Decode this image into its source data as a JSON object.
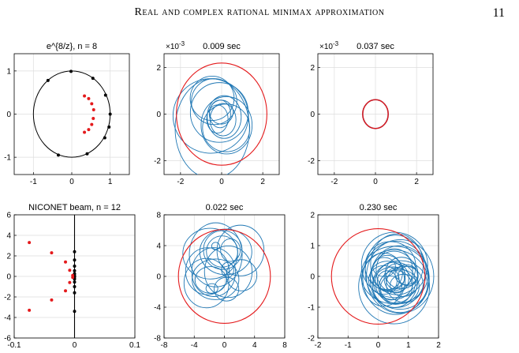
{
  "header": {
    "running_title": "Real and complex rational minimax approximation",
    "page_number": "11"
  },
  "colors": {
    "black": "#000000",
    "red": "#e41a1c",
    "blue": "#1f77b4",
    "darkred": "#8b1a3a",
    "grid": "#dddddd"
  },
  "chart_data": [
    {
      "type": "scatter",
      "title": "e^{8/z},  n = 8",
      "xlim": [
        -1.5,
        1.5
      ],
      "ylim": [
        -1.4,
        1.4
      ],
      "xticks": [
        -1,
        0,
        1
      ],
      "yticks": [
        -1,
        0,
        1
      ],
      "xtick_labels": [
        "-1",
        "0",
        "1"
      ],
      "ytick_labels": [
        "-1",
        "0",
        "1"
      ],
      "unit_circle": true,
      "series": [
        {
          "name": "",
          "color": "black",
          "x": [
            -0.62,
            -0.02,
            0.55,
            0.88,
            1.0,
            0.97,
            0.86,
            0.4,
            -0.35
          ],
          "y": [
            0.78,
            0.99,
            0.83,
            0.44,
            0.0,
            -0.3,
            -0.55,
            -0.92,
            -0.95
          ]
        },
        {
          "name": "",
          "color": "red",
          "x": [
            0.33,
            0.44,
            0.52,
            0.57,
            0.56,
            0.52,
            0.44,
            0.33
          ],
          "y": [
            0.42,
            0.36,
            0.24,
            0.1,
            -0.1,
            -0.24,
            -0.36,
            -0.42
          ]
        }
      ]
    },
    {
      "type": "line",
      "title": "0.009 sec",
      "exponent_label": "×10",
      "exponent": "-3",
      "xlim": [
        -2.8,
        2.8
      ],
      "ylim": [
        -2.6,
        2.6
      ],
      "xticks": [
        -2,
        0,
        2
      ],
      "yticks": [
        -2,
        0,
        2
      ],
      "xtick_labels": [
        "-2",
        "0",
        "2"
      ],
      "ytick_labels": [
        "-2",
        "0",
        "2"
      ],
      "circle_radius": 2.2,
      "loops": [
        [
          0,
          0,
          1.9
        ],
        [
          -0.3,
          0.2,
          1.5
        ],
        [
          0.3,
          -0.2,
          1.4
        ],
        [
          -0.5,
          -0.3,
          1.1
        ],
        [
          0.5,
          0.3,
          1.0
        ],
        [
          0,
          0.5,
          0.9
        ],
        [
          -0.2,
          0.0,
          0.7
        ],
        [
          0.4,
          -0.1,
          0.6
        ]
      ]
    },
    {
      "type": "line",
      "title": "0.037 sec",
      "exponent_label": "×10",
      "exponent": "-3",
      "xlim": [
        -2.8,
        2.8
      ],
      "ylim": [
        -2.6,
        2.6
      ],
      "xticks": [
        -2,
        0,
        2
      ],
      "yticks": [
        -2,
        0,
        2
      ],
      "xtick_labels": [
        "-2",
        "0",
        "2"
      ],
      "ytick_labels": [
        "-2",
        "0",
        "2"
      ],
      "circle_radius": 0.62
    },
    {
      "type": "scatter",
      "title": "NICONET beam,  n = 12",
      "xlim": [
        -0.1,
        0.1
      ],
      "ylim": [
        -6,
        6
      ],
      "xticks": [
        -0.1,
        0,
        0.1
      ],
      "yticks": [
        -6,
        -4,
        -2,
        0,
        2,
        4,
        6
      ],
      "xtick_labels": [
        "-0.1",
        "0",
        "0.1"
      ],
      "ytick_labels": [
        "-6",
        "-4",
        "-2",
        "0",
        "2",
        "4",
        "6"
      ],
      "vertical_axis_line": true,
      "series": [
        {
          "name": "",
          "color": "black",
          "x": [
            0,
            0,
            0,
            0,
            0,
            0,
            0,
            0,
            0,
            0,
            0,
            0
          ],
          "y": [
            2.4,
            1.6,
            1.0,
            0.55,
            0.25,
            0.05,
            -0.05,
            -0.25,
            -0.55,
            -1.0,
            -1.6,
            -3.4
          ]
        },
        {
          "name": "",
          "color": "red",
          "x": [
            -0.075,
            -0.075,
            -0.038,
            -0.038,
            -0.015,
            -0.015,
            -0.008,
            -0.008,
            -0.003,
            -0.003
          ],
          "y": [
            3.3,
            -3.3,
            2.3,
            -2.3,
            1.4,
            -1.4,
            0.6,
            -0.6,
            0.1,
            -0.1
          ]
        }
      ]
    },
    {
      "type": "line",
      "title": "0.022 sec",
      "xlim": [
        -8,
        8
      ],
      "ylim": [
        -8,
        8
      ],
      "xticks": [
        -8,
        -4,
        0,
        4,
        8
      ],
      "yticks": [
        -8,
        -4,
        0,
        4,
        8
      ],
      "xtick_labels": [
        "-8",
        "-4",
        "0",
        "4",
        "8"
      ],
      "ytick_labels": [
        "-8",
        "-4",
        "0",
        "4",
        "8"
      ],
      "circle_radius": 6.1
    },
    {
      "type": "line",
      "title": "0.230 sec",
      "xlim": [
        -2,
        2
      ],
      "ylim": [
        -2,
        2
      ],
      "xticks": [
        -2,
        -1,
        0,
        1,
        2
      ],
      "yticks": [
        -2,
        -1,
        0,
        1,
        2
      ],
      "xtick_labels": [
        "-2",
        "-1",
        "0",
        "1",
        "2"
      ],
      "ytick_labels": [
        "-2",
        "-1",
        "0",
        "1",
        "2"
      ],
      "circle_radius": 1.55
    }
  ]
}
